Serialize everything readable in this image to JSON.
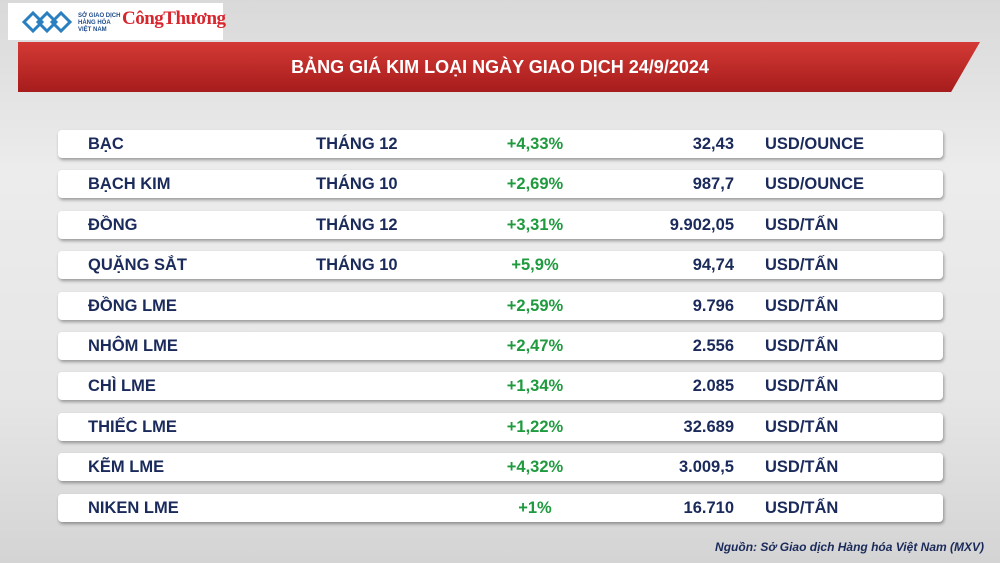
{
  "header": {
    "org_lines": [
      "SỞ GIAO DỊCH",
      "HÀNG HÓA",
      "VIỆT NAM"
    ],
    "brand": "CôngThương"
  },
  "title": "BẢNG GIÁ KIM LOẠI NGÀY GIAO DỊCH 24/9/2024",
  "table": {
    "rows": [
      {
        "name": "BẠC",
        "month": "THÁNG 12",
        "change": "+4,33%",
        "price": "32,43",
        "unit": "USD/OUNCE"
      },
      {
        "name": "BẠCH KIM",
        "month": "THÁNG 10",
        "change": "+2,69%",
        "price": "987,7",
        "unit": "USD/OUNCE"
      },
      {
        "name": "ĐỒNG",
        "month": "THÁNG 12",
        "change": "+3,31%",
        "price": "9.902,05",
        "unit": "USD/TẤN"
      },
      {
        "name": "QUẶNG SẮT",
        "month": "THÁNG 10",
        "change": "+5,9%",
        "price": "94,74",
        "unit": "USD/TẤN"
      },
      {
        "name": "ĐỒNG LME",
        "change": "+2,59%",
        "price": "9.796",
        "unit": "USD/TẤN"
      },
      {
        "name": "NHÔM LME",
        "change": "+2,47%",
        "price": "2.556",
        "unit": "USD/TẤN"
      },
      {
        "name": "CHÌ LME",
        "change": "+1,34%",
        "price": "2.085",
        "unit": "USD/TẤN"
      },
      {
        "name": "THIẾC LME",
        "change": "+1,22%",
        "price": "32.689",
        "unit": "USD/TẤN"
      },
      {
        "name": "KẼM LME",
        "change": "+4,32%",
        "price": "3.009,5",
        "unit": "USD/TẤN"
      },
      {
        "name": "NIKEN LME",
        "change": "+1%",
        "price": "16.710",
        "unit": "USD/TẤN"
      }
    ]
  },
  "source": "Nguồn: Sở Giao dịch Hàng hóa Việt Nam (MXV)"
}
